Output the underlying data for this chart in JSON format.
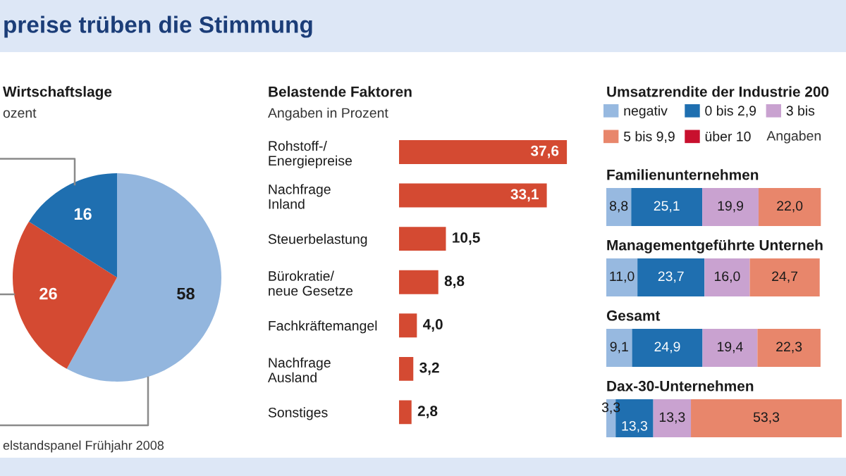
{
  "chart_data": [
    {
      "type": "pie",
      "title": "Wirtschaftslage",
      "subtitle": "ozent",
      "categories": [
        null,
        null,
        null
      ],
      "values": [
        58,
        26,
        16
      ],
      "colors": [
        "#93b6de",
        "#d44a32",
        "#1f6fb0"
      ],
      "data_labels": true,
      "annotations": [
        "preise trüben die Stimmung",
        "elstandspanel Frühjahr 2008"
      ]
    },
    {
      "type": "bar",
      "orientation": "horizontal",
      "title": "Belastende Faktoren",
      "subtitle": "Angaben in Prozent",
      "categories": [
        "Rohstoff-/\nEnergiepreise",
        "Nachfrage\nInland",
        "Steuerbelastung",
        "Bürokratie/\nneue Gesetze",
        "Fachkräftemangel",
        "Nachfrage\nAusland",
        "Sonstiges"
      ],
      "values": [
        37.6,
        33.1,
        10.5,
        8.8,
        4.0,
        3.2,
        2.8
      ],
      "color": "#d44a32",
      "value_labels": [
        "37,6",
        "33,1",
        "10,5",
        "8,8",
        "4,0",
        "3,2",
        "2,8"
      ],
      "tick_labels": "y"
    },
    {
      "type": "bar",
      "orientation": "horizontal",
      "stacked": true,
      "title": "Umsatzrendite der Industrie 200",
      "categories": [
        "Familienunternehmen",
        "Managementgeführte Unterneh",
        "Gesamt",
        "Dax-30-Unternehmen"
      ],
      "series": [
        {
          "name": "negativ",
          "color": "#97b9e0",
          "values": [
            8.8,
            11.0,
            9.1,
            3.3
          ],
          "value_labels": [
            "8,8",
            "11,0",
            "9,1",
            "3,3"
          ]
        },
        {
          "name": "0 bis 2,9",
          "color": "#1f6fb0",
          "values": [
            25.1,
            23.7,
            24.9,
            13.3
          ],
          "value_labels": [
            "25,1",
            "23,7",
            "24,9",
            "13,3"
          ]
        },
        {
          "name": "3 bis",
          "color": "#c9a2d0",
          "values": [
            19.9,
            16.0,
            19.4,
            13.3
          ],
          "value_labels": [
            "19,9",
            "16,0",
            "19,4",
            "13,3"
          ]
        },
        {
          "name": "5 bis 9,9",
          "color": "#e8866b",
          "values": [
            22.0,
            24.7,
            22.3,
            53.3
          ],
          "value_labels": [
            "22,0",
            "24,7",
            "22,3",
            "53,3"
          ]
        },
        {
          "name": "über 10",
          "color": "#c8102e",
          "values": [
            null,
            null,
            null,
            null
          ]
        }
      ],
      "legend": "top",
      "tick_labels": "y",
      "annotations": [
        "Angaben"
      ]
    }
  ]
}
